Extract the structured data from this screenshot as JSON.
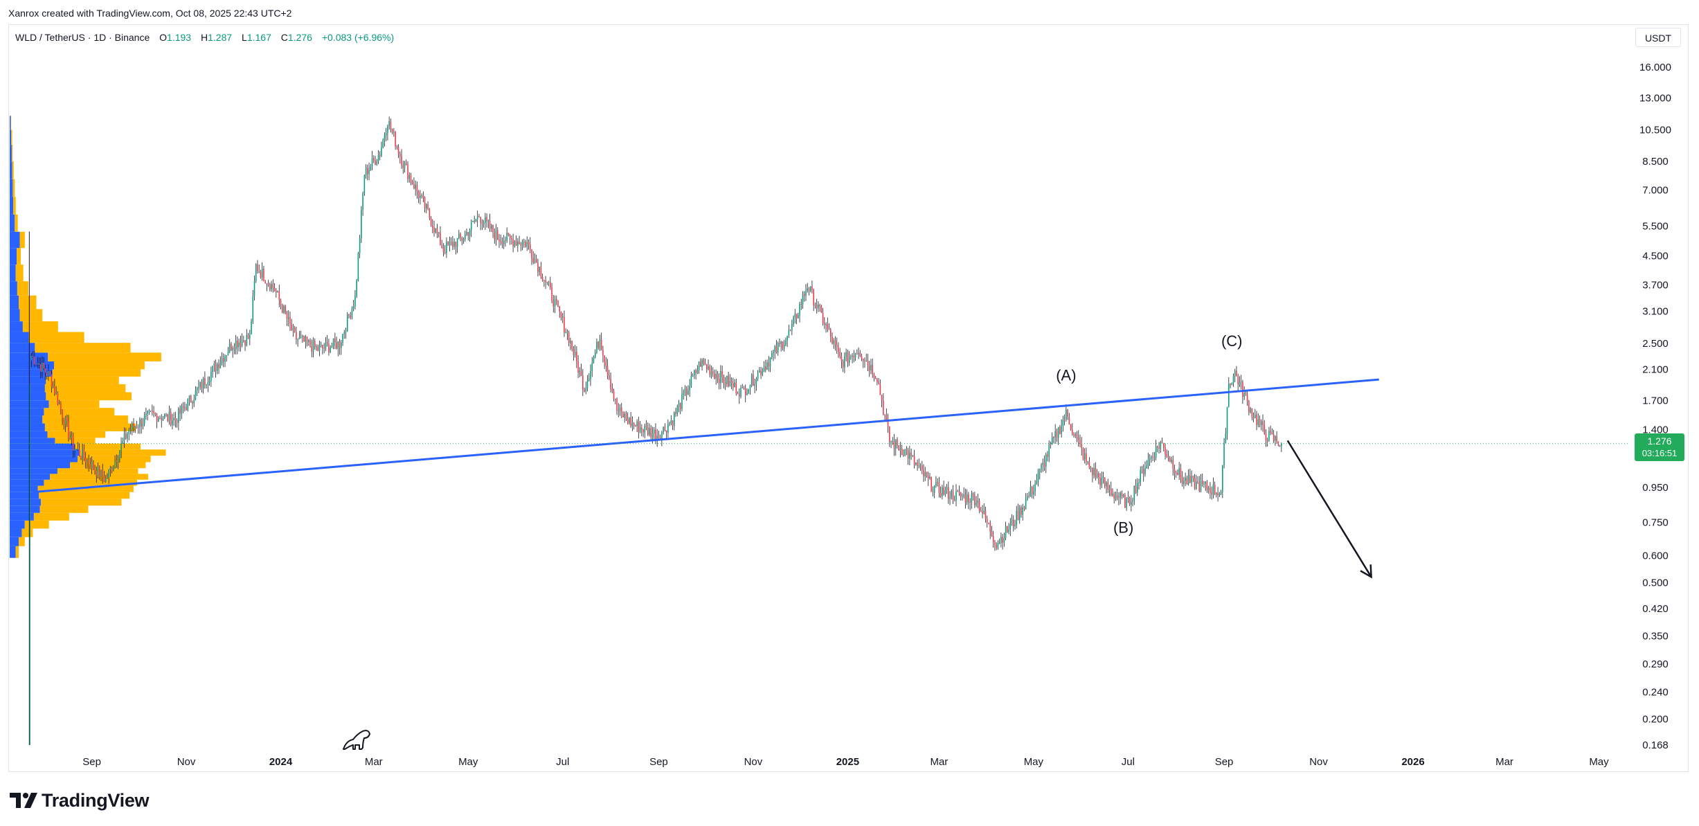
{
  "header": {
    "credit": "Xanrox created with TradingView.com, Oct 08, 2025 22:43 UTC+2"
  },
  "legend": {
    "symbol": "WLD / TetherUS · 1D · Binance",
    "open_label": "O",
    "open": "1.193",
    "high_label": "H",
    "high": "1.287",
    "low_label": "L",
    "low": "1.167",
    "close_label": "C",
    "close": "1.276",
    "change": "+0.083 (+6.96%)"
  },
  "price_axis": {
    "currency": "USDT",
    "last_price": "1.276",
    "countdown": "03:16:51"
  },
  "brand": {
    "name": "TradingView"
  },
  "colors": {
    "up": "#089981",
    "down": "#f23645",
    "trendline": "#2962ff",
    "vp_blue": "#2962ff",
    "vp_yellow": "#ffb700",
    "price_tag": "#22ab5b"
  },
  "chart_data": {
    "type": "candlestick",
    "scale": "log",
    "y_ticks": [
      16,
      13,
      10.5,
      8.5,
      7,
      5.5,
      4.5,
      3.7,
      3.1,
      2.5,
      2.1,
      1.7,
      1.4,
      0.95,
      0.75,
      0.6,
      0.5,
      0.42,
      0.35,
      0.29,
      0.24,
      0.2,
      0.168
    ],
    "y_tick_labels": [
      "16.000",
      "13.000",
      "10.500",
      "8.500",
      "7.000",
      "5.500",
      "4.500",
      "3.700",
      "3.100",
      "2.500",
      "2.100",
      "1.700",
      "1.400",
      "0.950",
      "0.750",
      "0.600",
      "0.500",
      "0.420",
      "0.350",
      "0.290",
      "0.240",
      "0.200",
      "0.168"
    ],
    "ylim": [
      0.165,
      19
    ],
    "x_tick_labels": [
      {
        "date": "2023-09-01",
        "label": "Sep"
      },
      {
        "date": "2023-11-01",
        "label": "Nov"
      },
      {
        "date": "2024-01-01",
        "label": "2024",
        "major": true
      },
      {
        "date": "2024-03-01",
        "label": "Mar"
      },
      {
        "date": "2024-05-01",
        "label": "May"
      },
      {
        "date": "2024-07-01",
        "label": "Jul"
      },
      {
        "date": "2024-09-01",
        "label": "Sep"
      },
      {
        "date": "2024-11-01",
        "label": "Nov"
      },
      {
        "date": "2025-01-01",
        "label": "2025",
        "major": true
      },
      {
        "date": "2025-03-01",
        "label": "Mar"
      },
      {
        "date": "2025-05-01",
        "label": "May"
      },
      {
        "date": "2025-07-01",
        "label": "Jul"
      },
      {
        "date": "2025-09-01",
        "label": "Sep"
      },
      {
        "date": "2025-11-01",
        "label": "Nov"
      },
      {
        "date": "2026-01-01",
        "label": "2026",
        "major": true
      },
      {
        "date": "2026-03-01",
        "label": "Mar"
      },
      {
        "date": "2026-05-01",
        "label": "May"
      }
    ],
    "xlim": [
      "2023-07-10",
      "2026-05-20"
    ],
    "price_path": [
      [
        "2023-07-24",
        2.3
      ],
      [
        "2023-08-05",
        2.0
      ],
      [
        "2023-08-20",
        1.25
      ],
      [
        "2023-09-10",
        1.0
      ],
      [
        "2023-09-25",
        1.4
      ],
      [
        "2023-10-10",
        1.55
      ],
      [
        "2023-10-25",
        1.5
      ],
      [
        "2023-11-15",
        2.0
      ],
      [
        "2023-12-01",
        2.5
      ],
      [
        "2023-12-12",
        2.6
      ],
      [
        "2023-12-16",
        4.2
      ],
      [
        "2023-12-28",
        3.6
      ],
      [
        "2024-01-10",
        2.6
      ],
      [
        "2024-01-25",
        2.4
      ],
      [
        "2024-02-08",
        2.5
      ],
      [
        "2024-02-18",
        3.4
      ],
      [
        "2024-02-24",
        7.8
      ],
      [
        "2024-03-05",
        9.0
      ],
      [
        "2024-03-10",
        11.2
      ],
      [
        "2024-03-20",
        8.4
      ],
      [
        "2024-04-05",
        6.0
      ],
      [
        "2024-04-15",
        4.7
      ],
      [
        "2024-04-28",
        5.1
      ],
      [
        "2024-05-08",
        5.9
      ],
      [
        "2024-05-20",
        5.1
      ],
      [
        "2024-06-08",
        4.9
      ],
      [
        "2024-06-20",
        3.8
      ],
      [
        "2024-07-05",
        2.6
      ],
      [
        "2024-07-15",
        1.85
      ],
      [
        "2024-07-25",
        2.6
      ],
      [
        "2024-08-05",
        1.6
      ],
      [
        "2024-08-15",
        1.45
      ],
      [
        "2024-09-01",
        1.35
      ],
      [
        "2024-09-10",
        1.5
      ],
      [
        "2024-09-28",
        2.2
      ],
      [
        "2024-10-10",
        2.0
      ],
      [
        "2024-10-25",
        1.8
      ],
      [
        "2024-11-10",
        2.2
      ],
      [
        "2024-11-25",
        2.7
      ],
      [
        "2024-12-06",
        3.7
      ],
      [
        "2024-12-18",
        2.8
      ],
      [
        "2024-12-28",
        2.2
      ],
      [
        "2025-01-08",
        2.4
      ],
      [
        "2025-01-20",
        2.0
      ],
      [
        "2025-01-28",
        1.3
      ],
      [
        "2025-02-08",
        1.2
      ],
      [
        "2025-02-25",
        0.95
      ],
      [
        "2025-03-10",
        0.9
      ],
      [
        "2025-03-25",
        0.88
      ],
      [
        "2025-04-07",
        0.65
      ],
      [
        "2025-04-18",
        0.75
      ],
      [
        "2025-05-01",
        0.95
      ],
      [
        "2025-05-12",
        1.25
      ],
      [
        "2025-05-22",
        1.55
      ],
      [
        "2025-06-05",
        1.1
      ],
      [
        "2025-06-20",
        0.92
      ],
      [
        "2025-07-01",
        0.85
      ],
      [
        "2025-07-12",
        1.1
      ],
      [
        "2025-07-22",
        1.28
      ],
      [
        "2025-08-05",
        1.0
      ],
      [
        "2025-08-20",
        0.95
      ],
      [
        "2025-08-30",
        0.92
      ],
      [
        "2025-09-04",
        1.9
      ],
      [
        "2025-09-08",
        2.05
      ],
      [
        "2025-09-18",
        1.6
      ],
      [
        "2025-09-28",
        1.35
      ],
      [
        "2025-10-08",
        1.276
      ]
    ],
    "trendline": {
      "start": [
        "2023-07-25",
        0.92
      ],
      "end": [
        "2025-12-10",
        1.96
      ]
    },
    "projection_arrow": {
      "start": [
        "2025-10-12",
        1.3
      ],
      "end": [
        "2025-12-05",
        0.52
      ]
    },
    "current_price": 1.276,
    "annotations": [
      {
        "text": "(A)",
        "date": "2025-05-22",
        "price": 1.95
      },
      {
        "text": "(B)",
        "date": "2025-06-28",
        "price": 0.7
      },
      {
        "text": "(C)",
        "date": "2025-09-06",
        "price": 2.45
      }
    ],
    "volume_profile": {
      "price_levels": [
        0.62,
        0.66,
        0.7,
        0.74,
        0.78,
        0.82,
        0.86,
        0.9,
        0.94,
        0.98,
        1.02,
        1.06,
        1.1,
        1.15,
        1.2,
        1.25,
        1.3,
        1.35,
        1.42,
        1.5,
        1.58,
        1.66,
        1.75,
        1.85,
        1.95,
        2.05,
        2.15,
        2.28,
        2.42,
        2.6,
        2.8,
        3.0,
        3.3,
        3.6,
        4.0,
        4.5,
        5.0,
        5.6,
        6.3,
        7.1,
        8.0,
        9.0,
        10.0,
        11.0
      ],
      "blue": [
        12,
        18,
        24,
        30,
        48,
        60,
        62,
        58,
        56,
        68,
        80,
        95,
        120,
        135,
        140,
        130,
        90,
        75,
        70,
        65,
        68,
        78,
        72,
        70,
        72,
        85,
        88,
        76,
        50,
        38,
        26,
        20,
        18,
        15,
        12,
        14,
        20,
        10,
        7,
        6,
        5,
        4,
        3,
        2
      ],
      "yellow": [
        6,
        12,
        22,
        48,
        70,
        96,
        160,
        180,
        190,
        185,
        195,
        160,
        150,
        145,
        170,
        130,
        80,
        115,
        180,
        170,
        140,
        100,
        170,
        160,
        145,
        175,
        180,
        225,
        190,
        110,
        70,
        45,
        35,
        22,
        15,
        8,
        10,
        6,
        5,
        4,
        3,
        2,
        2,
        1
      ]
    }
  }
}
